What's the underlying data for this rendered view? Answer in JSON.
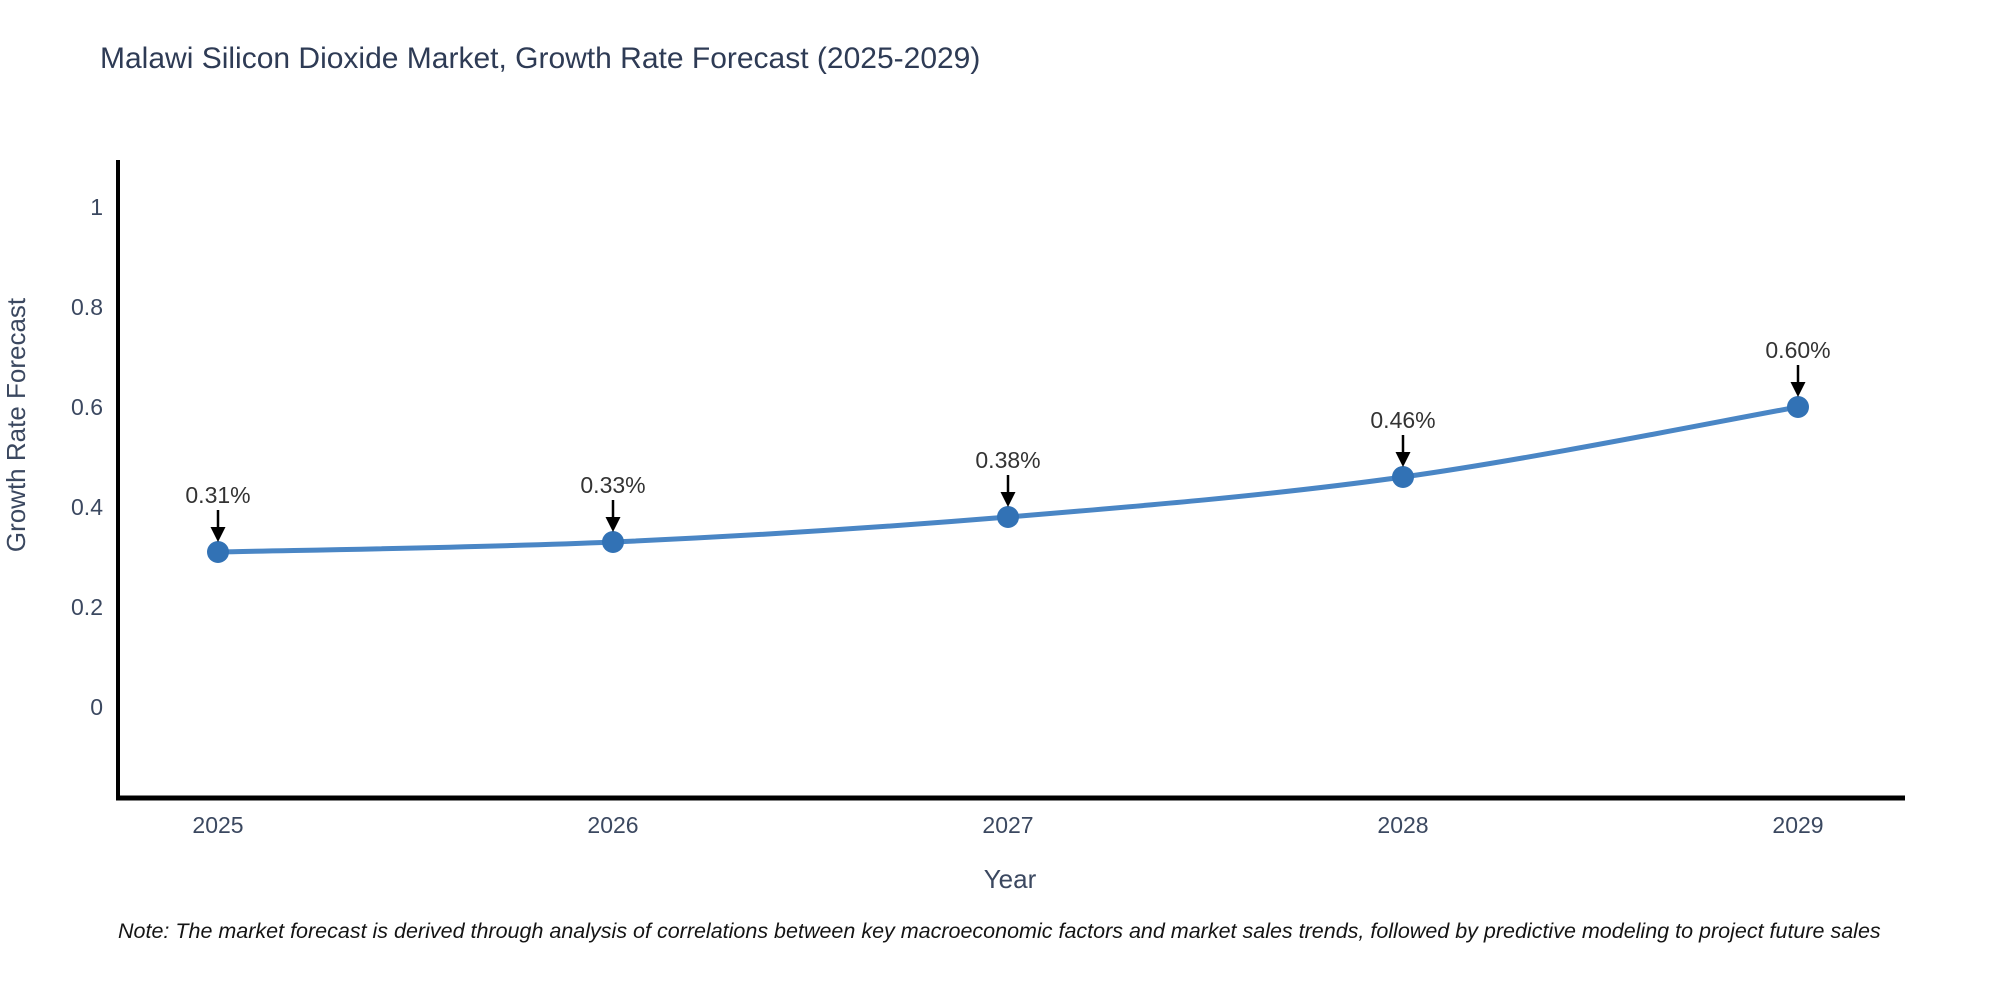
{
  "title": "Malawi Silicon Dioxide Market, Growth Rate Forecast (2025-2029)",
  "note": "Note: The market forecast is derived through analysis of correlations between key macroeconomic factors and market sales trends, followed by predictive modeling to project future sales",
  "chart_data": {
    "type": "line",
    "title": "Malawi Silicon Dioxide Market, Growth Rate Forecast (2025-2029)",
    "x": [
      "2025",
      "2026",
      "2027",
      "2028",
      "2029"
    ],
    "values": [
      0.31,
      0.33,
      0.38,
      0.46,
      0.6
    ],
    "point_labels": [
      "0.31%",
      "0.33%",
      "0.38%",
      "0.46%",
      "0.60%"
    ],
    "xlabel": "Year",
    "ylabel": "Growth Rate Forecast",
    "yticks": [
      0,
      0.2,
      0.4,
      0.6,
      0.8,
      1
    ],
    "ytick_labels": [
      "0",
      "0.2",
      "0.4",
      "0.6",
      "0.8",
      "1"
    ],
    "ylim": [
      -0.18,
      1.09
    ],
    "grid": false,
    "legend": false,
    "line_shape": "spline",
    "annotation_style": "black-arrow-down",
    "colors": {
      "line": "#4a86c5",
      "marker": "#3272b5",
      "axis": "#000000",
      "tick_text": "#3b4860",
      "title_text": "#2e3b55",
      "annotation_text": "#333333"
    }
  }
}
